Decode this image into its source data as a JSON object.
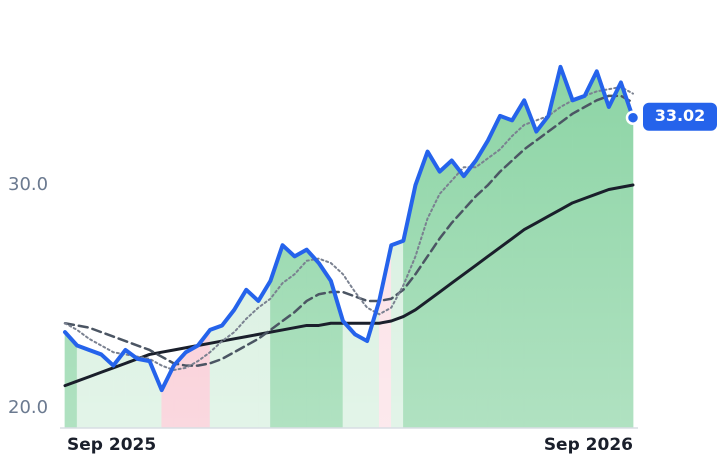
{
  "chart_data": {
    "type": "line",
    "categories": [
      "Sep 2025",
      null,
      null,
      null,
      null,
      null,
      null,
      null,
      null,
      null,
      null,
      null,
      null,
      null,
      null,
      null,
      null,
      null,
      null,
      null,
      null,
      null,
      null,
      null,
      null,
      null,
      null,
      null,
      null,
      null,
      null,
      null,
      null,
      null,
      null,
      null,
      null,
      null,
      null,
      null,
      null,
      null,
      null,
      null,
      null,
      null,
      null,
      "Sep 2026"
    ],
    "series": [
      {
        "color": "#2563eb",
        "style": "solid",
        "width": 4,
        "values": [
          23.4,
          22.8,
          22.6,
          22.4,
          21.9,
          22.6,
          22.2,
          22.1,
          20.8,
          21.9,
          22.5,
          22.8,
          23.5,
          23.7,
          24.4,
          25.3,
          24.8,
          25.7,
          27.3,
          26.8,
          27.1,
          26.5,
          25.7,
          23.9,
          23.3,
          23.0,
          24.8,
          27.3,
          27.5,
          30.0,
          31.5,
          30.6,
          31.1,
          30.4,
          31.1,
          32.0,
          33.1,
          32.9,
          33.8,
          32.4,
          33.1,
          35.3,
          33.8,
          34.0,
          35.1,
          33.5,
          34.6,
          33.02
        ]
      },
      {
        "color": "#7a8190",
        "style": "dotted",
        "width": 2,
        "values": [
          23.8,
          23.5,
          23.1,
          22.8,
          22.5,
          22.4,
          22.3,
          22.2,
          21.9,
          21.7,
          21.8,
          22.1,
          22.5,
          23.0,
          23.4,
          24.0,
          24.5,
          24.9,
          25.6,
          26.0,
          26.6,
          26.7,
          26.5,
          26.0,
          25.2,
          24.5,
          24.2,
          24.5,
          25.5,
          26.8,
          28.5,
          29.6,
          30.2,
          30.8,
          30.8,
          31.2,
          31.6,
          32.2,
          32.7,
          32.9,
          33.1,
          33.5,
          33.8,
          34.0,
          34.2,
          34.3,
          34.4,
          34.1
        ]
      },
      {
        "color": "#4b5563",
        "style": "dashed",
        "width": 2.5,
        "values": [
          23.8,
          23.7,
          23.6,
          23.4,
          23.2,
          23.0,
          22.8,
          22.6,
          22.3,
          22.0,
          21.9,
          21.9,
          22.0,
          22.2,
          22.5,
          22.8,
          23.1,
          23.5,
          23.9,
          24.3,
          24.8,
          25.1,
          25.2,
          25.2,
          25.0,
          24.8,
          24.8,
          24.9,
          25.3,
          26.0,
          26.8,
          27.6,
          28.3,
          28.9,
          29.5,
          30.0,
          30.6,
          31.1,
          31.6,
          32.0,
          32.4,
          32.8,
          33.2,
          33.5,
          33.8,
          34.0,
          34.0,
          33.7
        ]
      },
      {
        "color": "#1a1f2b",
        "style": "solid",
        "width": 3,
        "values": [
          21.0,
          21.2,
          21.4,
          21.6,
          21.8,
          22.0,
          22.2,
          22.4,
          22.5,
          22.6,
          22.7,
          22.8,
          22.9,
          23.0,
          23.1,
          23.2,
          23.3,
          23.4,
          23.5,
          23.6,
          23.7,
          23.7,
          23.8,
          23.8,
          23.8,
          23.8,
          23.8,
          23.9,
          24.1,
          24.4,
          24.8,
          25.2,
          25.6,
          26.0,
          26.4,
          26.8,
          27.2,
          27.6,
          28.0,
          28.3,
          28.6,
          28.9,
          29.2,
          29.4,
          29.6,
          29.8,
          29.9,
          30.0
        ]
      }
    ],
    "area_colors": [
      "#86d2a0",
      "#d3eedc",
      "#d3eedc",
      "#d3eedc",
      "#d3eedc",
      "#d3eedc",
      "#d3eedc",
      "#d3eedc",
      "#f8c3ce",
      "#f8c3ce",
      "#f8c3ce",
      "#f8c3ce",
      "#d3eedc",
      "#d3eedc",
      "#d3eedc",
      "#d3eedc",
      "#d3eedc",
      "#86d2a0",
      "#86d2a0",
      "#86d2a0",
      "#86d2a0",
      "#86d2a0",
      "#86d2a0",
      "#d3eedc",
      "#d3eedc",
      "#d3eedc",
      "#fbdde3",
      "#d3eedc",
      "#86d2a0",
      "#86d2a0",
      "#86d2a0",
      "#86d2a0",
      "#86d2a0",
      "#86d2a0",
      "#86d2a0",
      "#86d2a0",
      "#86d2a0",
      "#86d2a0",
      "#86d2a0",
      "#86d2a0",
      "#86d2a0",
      "#86d2a0",
      "#86d2a0",
      "#86d2a0",
      "#86d2a0",
      "#86d2a0",
      "#86d2a0"
    ],
    "ylim": [
      19.1,
      38.3
    ],
    "yticks": [
      {
        "value": 20,
        "label": "20.0"
      },
      {
        "value": 30,
        "label": "30.0"
      }
    ],
    "grid": false
  }
}
